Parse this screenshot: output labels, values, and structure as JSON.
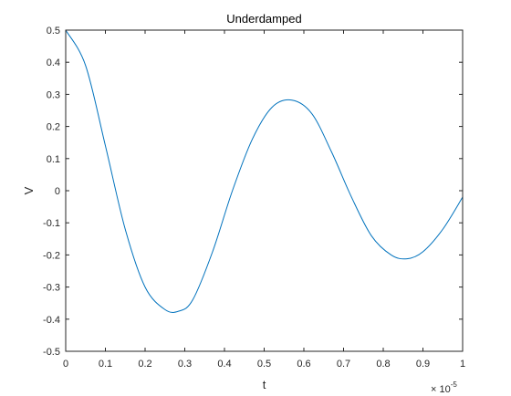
{
  "chart_data": {
    "type": "line",
    "title": "Underdamped",
    "xlabel": "t",
    "ylabel": "V",
    "x_exponent": {
      "base": "× 10",
      "power": "-5"
    },
    "xlim": [
      0,
      1
    ],
    "ylim": [
      -0.5,
      0.5
    ],
    "xticks": [
      0,
      0.1,
      0.2,
      0.3,
      0.4,
      0.5,
      0.6,
      0.7,
      0.8,
      0.9,
      1
    ],
    "yticks": [
      -0.5,
      -0.4,
      -0.3,
      -0.2,
      -0.1,
      0,
      0.1,
      0.2,
      0.3,
      0.4,
      0.5
    ],
    "xtick_labels": [
      "0",
      "0.1",
      "0.2",
      "0.3",
      "0.4",
      "0.5",
      "0.6",
      "0.7",
      "0.8",
      "0.9",
      "1"
    ],
    "ytick_labels": [
      "-0.5",
      "-0.4",
      "-0.3",
      "-0.2",
      "-0.1",
      "0",
      "0.1",
      "0.2",
      "0.3",
      "0.4",
      "0.5"
    ],
    "grid": false,
    "line_color": "#0072BD",
    "series": [
      {
        "x": [
          0,
          0.05,
          0.1,
          0.15,
          0.2,
          0.25,
          0.285,
          0.32,
          0.37,
          0.42,
          0.47,
          0.52,
          0.57,
          0.62,
          0.67,
          0.72,
          0.77,
          0.82,
          0.86,
          0.9,
          0.95,
          1.0
        ],
        "y": [
          0.5,
          0.39,
          0.14,
          -0.12,
          -0.3,
          -0.37,
          -0.375,
          -0.34,
          -0.19,
          0.0,
          0.16,
          0.26,
          0.282,
          0.24,
          0.12,
          -0.02,
          -0.14,
          -0.2,
          -0.212,
          -0.19,
          -0.12,
          -0.02
        ]
      }
    ]
  }
}
